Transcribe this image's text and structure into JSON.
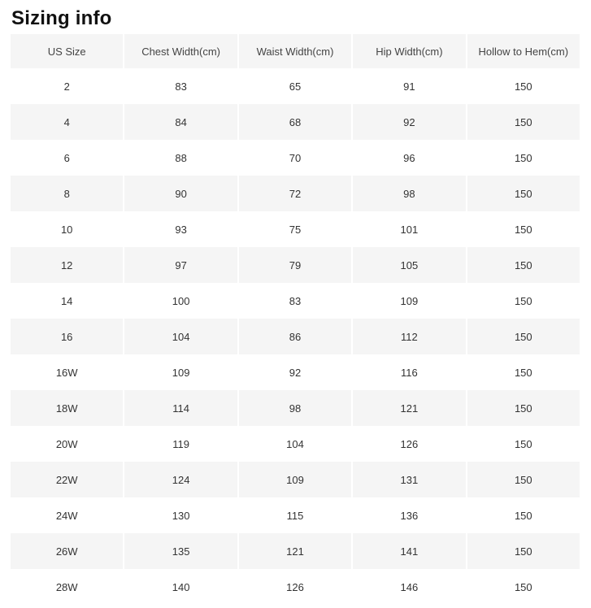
{
  "page": {
    "title": "Sizing info"
  },
  "table": {
    "columns": [
      "US Size",
      "Chest Width(cm)",
      "Waist Width(cm)",
      "Hip Width(cm)",
      "Hollow to Hem(cm)"
    ],
    "rows": [
      [
        "2",
        "83",
        "65",
        "91",
        "150"
      ],
      [
        "4",
        "84",
        "68",
        "92",
        "150"
      ],
      [
        "6",
        "88",
        "70",
        "96",
        "150"
      ],
      [
        "8",
        "90",
        "72",
        "98",
        "150"
      ],
      [
        "10",
        "93",
        "75",
        "101",
        "150"
      ],
      [
        "12",
        "97",
        "79",
        "105",
        "150"
      ],
      [
        "14",
        "100",
        "83",
        "109",
        "150"
      ],
      [
        "16",
        "104",
        "86",
        "112",
        "150"
      ],
      [
        "16W",
        "109",
        "92",
        "116",
        "150"
      ],
      [
        "18W",
        "114",
        "98",
        "121",
        "150"
      ],
      [
        "20W",
        "119",
        "104",
        "126",
        "150"
      ],
      [
        "22W",
        "124",
        "109",
        "131",
        "150"
      ],
      [
        "24W",
        "130",
        "115",
        "136",
        "150"
      ],
      [
        "26W",
        "135",
        "121",
        "141",
        "150"
      ],
      [
        "28W",
        "140",
        "126",
        "146",
        "150"
      ]
    ]
  },
  "colors": {
    "stripe_bg": "#f5f5f5",
    "header_bg": "#f5f5f5",
    "header_text": "#444444",
    "cell_text": "#333333",
    "title_text": "#111111",
    "page_bg": "#ffffff"
  }
}
